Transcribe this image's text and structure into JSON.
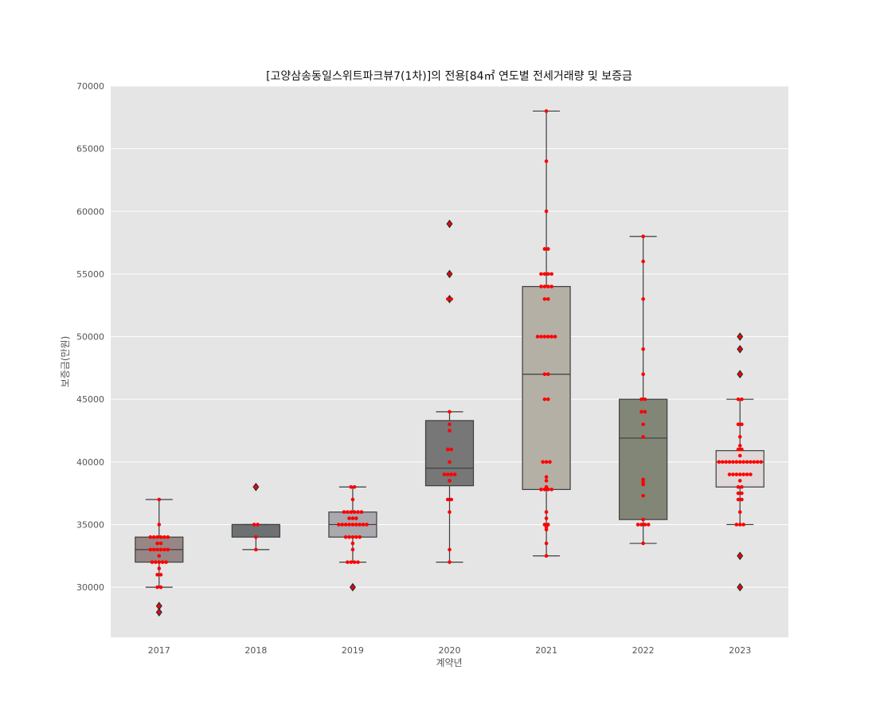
{
  "chart_data": {
    "type": "box",
    "title": "[고양삼송동일스위트파크뷰7(1차)]의 전용[84㎡ 연도별 전세거래량 및 보증금",
    "xlabel": "계약년",
    "ylabel": "보증금(만원)",
    "ylim": [
      26000,
      70000
    ],
    "yticks": [
      30000,
      35000,
      40000,
      45000,
      50000,
      55000,
      60000,
      65000,
      70000
    ],
    "grid": true,
    "point_color": "#ff0000",
    "outlier_color": "#3a3a3a",
    "categories": [
      "2017",
      "2018",
      "2019",
      "2020",
      "2021",
      "2022",
      "2023"
    ],
    "boxes": [
      {
        "category": "2017",
        "color": "#978685",
        "whisker_low": 30000,
        "q1": 32000,
        "median": 33000,
        "q3": 34000,
        "whisker_high": 37000,
        "outliers": [
          28500,
          28000
        ],
        "points": [
          37000,
          35000,
          34000,
          34000,
          34000,
          34000,
          34000,
          34000,
          33500,
          33500,
          33000,
          33000,
          33000,
          33000,
          33000,
          33000,
          32500,
          32000,
          32000,
          32000,
          32000,
          32000,
          31500,
          31000,
          31000,
          30000,
          30000,
          28500,
          28000
        ]
      },
      {
        "category": "2018",
        "color": "#6e7173",
        "whisker_low": 33000,
        "q1": 34000,
        "median": 35000,
        "q3": 35000,
        "whisker_high": 35000,
        "outliers": [
          38000
        ],
        "points": [
          38000,
          35000,
          35000,
          34000,
          33000
        ]
      },
      {
        "category": "2019",
        "color": "#a9a9ae",
        "whisker_low": 32000,
        "q1": 34000,
        "median": 35000,
        "q3": 36000,
        "whisker_high": 38000,
        "outliers": [
          30000
        ],
        "points": [
          38000,
          38000,
          37000,
          36000,
          36000,
          36000,
          36000,
          36000,
          36000,
          35500,
          35500,
          35500,
          35000,
          35000,
          35000,
          35000,
          35000,
          35000,
          35000,
          35000,
          35000,
          34000,
          34000,
          34000,
          34000,
          34000,
          33500,
          33000,
          32000,
          32000,
          32000,
          32000,
          30000
        ]
      },
      {
        "category": "2020",
        "color": "#777777",
        "whisker_low": 32000,
        "q1": 38100,
        "median": 39500,
        "q3": 43300,
        "whisker_high": 44000,
        "outliers": [
          59000,
          55000,
          53000
        ],
        "points": [
          59000,
          55000,
          53000,
          53000,
          44000,
          43000,
          42500,
          41000,
          41000,
          40000,
          39000,
          39000,
          39000,
          39000,
          38500,
          37000,
          37000,
          36000,
          33000,
          32000
        ]
      },
      {
        "category": "2021",
        "color": "#b4b0a5",
        "whisker_low": 32500,
        "q1": 37800,
        "median": 47000,
        "q3": 54000,
        "whisker_high": 68000,
        "outliers": [],
        "points": [
          68000,
          64000,
          60000,
          57000,
          57000,
          55000,
          55000,
          55000,
          55000,
          54000,
          54000,
          54000,
          54000,
          53000,
          53000,
          50000,
          50000,
          50000,
          50000,
          50000,
          50000,
          47000,
          47000,
          45000,
          45000,
          40000,
          40000,
          40000,
          38800,
          38500,
          38000,
          37800,
          37800,
          37800,
          37800,
          36000,
          35500,
          35000,
          35000,
          34800,
          34600,
          33500,
          32500
        ]
      },
      {
        "category": "2022",
        "color": "#828677",
        "whisker_low": 33500,
        "q1": 35400,
        "median": 41900,
        "q3": 45000,
        "whisker_high": 58000,
        "outliers": [],
        "points": [
          58000,
          56000,
          53000,
          49000,
          47000,
          45000,
          45000,
          44000,
          44000,
          43000,
          42000,
          38600,
          38400,
          38200,
          37300,
          35400,
          35000,
          35000,
          35000,
          35000,
          33500
        ]
      },
      {
        "category": "2023",
        "color": "#e0d8d8",
        "whisker_low": 35000,
        "q1": 38000,
        "median": 40000,
        "q3": 40900,
        "whisker_high": 45000,
        "outliers": [
          50000,
          49000,
          47000,
          32500,
          30000
        ],
        "points": [
          50000,
          49000,
          47000,
          45000,
          45000,
          43000,
          43000,
          42000,
          41300,
          41000,
          41000,
          40500,
          40000,
          40000,
          40000,
          40000,
          40000,
          40000,
          40000,
          40000,
          40000,
          40000,
          40000,
          40000,
          40000,
          39000,
          39000,
          39000,
          39000,
          39000,
          39000,
          39000,
          38500,
          38000,
          38000,
          37500,
          37500,
          37000,
          37000,
          36000,
          35000,
          35000,
          35000,
          32500,
          30000
        ]
      }
    ]
  }
}
